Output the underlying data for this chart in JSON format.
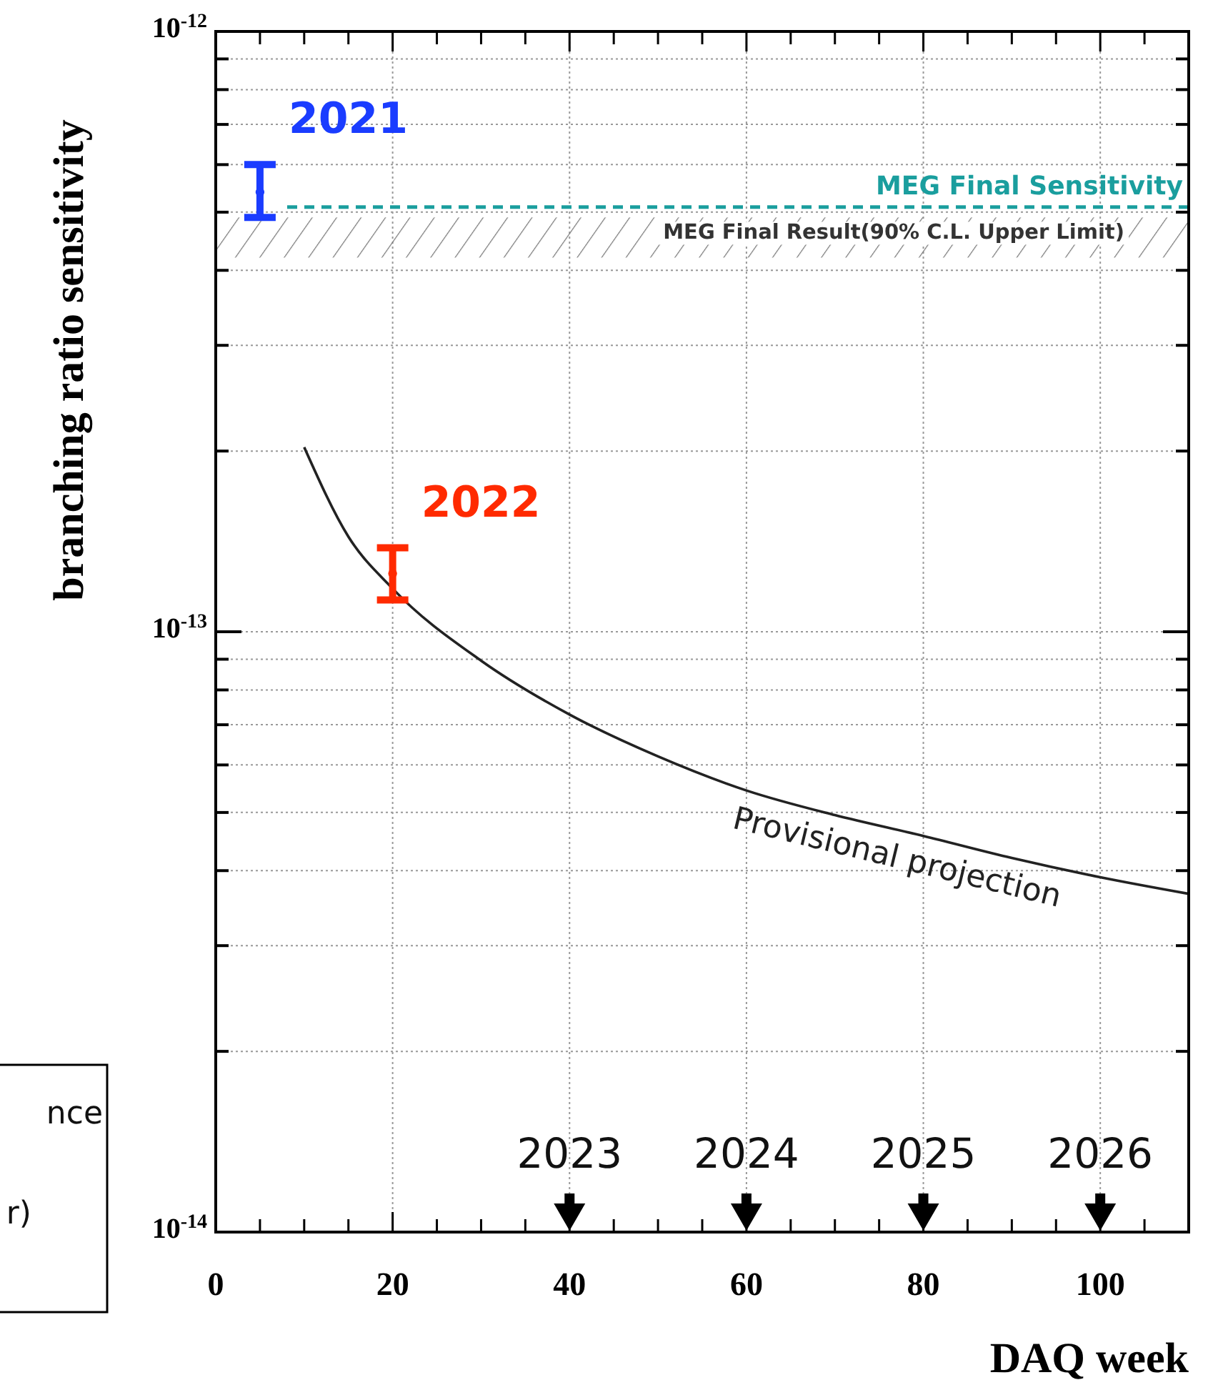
{
  "chart_data": {
    "type": "line",
    "xlabel": "DAQ week",
    "ylabel": "branching ratio sensitivity",
    "xlim": [
      0,
      110
    ],
    "xticks": [
      0,
      {
        "value": 5,
        "label": null
      },
      {
        "value": 10,
        "label": null
      },
      {
        "value": 15,
        "label": null
      },
      20,
      {
        "value": 25,
        "label": null
      },
      {
        "value": 30,
        "label": null
      },
      {
        "value": 35,
        "label": null
      },
      40,
      {
        "value": 45,
        "label": null
      },
      {
        "value": 50,
        "label": null
      },
      {
        "value": 55,
        "label": null
      },
      60,
      {
        "value": 65,
        "label": null
      },
      {
        "value": 70,
        "label": null
      },
      {
        "value": 75,
        "label": null
      },
      80,
      {
        "value": 85,
        "label": null
      },
      {
        "value": 90,
        "label": null
      },
      {
        "value": 95,
        "label": null
      },
      100,
      {
        "value": 105,
        "label": null
      }
    ],
    "ylim": [
      1e-14,
      1e-12
    ],
    "log": true,
    "yticks": [
      {
        "value": 1e-14,
        "label": "10$^{-14}$"
      },
      {
        "value": 2e-14,
        "label": null
      },
      {
        "value": 3e-14,
        "label": null
      },
      {
        "value": 4e-14,
        "label": null
      },
      {
        "value": 5e-14,
        "label": null
      },
      {
        "value": 6e-14,
        "label": null
      },
      {
        "value": 7e-14,
        "label": null
      },
      {
        "value": 8e-14,
        "label": null
      },
      {
        "value": 9e-14,
        "label": null
      },
      {
        "value": 1e-13,
        "label": "10$^{-13}$"
      },
      {
        "value": 2e-13,
        "label": null
      },
      {
        "value": 3e-13,
        "label": null
      },
      {
        "value": 4e-13,
        "label": null
      },
      {
        "value": 5e-13,
        "label": null
      },
      {
        "value": 6e-13,
        "label": null
      },
      {
        "value": 7e-13,
        "label": null
      },
      {
        "value": 8e-13,
        "label": null
      },
      {
        "value": 9e-13,
        "label": null
      },
      {
        "value": 1e-12,
        "label": "10$^{-12}$"
      }
    ],
    "grid": true,
    "series": [
      {
        "name": "Provisional projection",
        "color": "#222222",
        "line_style": "solid",
        "marker": "none",
        "x": [
          10,
          15,
          20,
          30,
          40,
          50,
          60,
          70,
          80,
          90,
          100,
          110
        ],
        "values": [
          2.03e-13,
          1.44e-13,
          1.18e-13,
          8.95e-14,
          7.28e-14,
          6.2e-14,
          5.44e-14,
          4.95e-14,
          4.57e-14,
          4.2e-14,
          3.9e-14,
          3.66e-14
        ]
      },
      {
        "name": "2021",
        "type": "scatter",
        "color": "#1a3cff",
        "marker": "circle",
        "x": [
          5
        ],
        "values": [
          5.4e-13
        ],
        "errors": [
          [
            4.9e-13,
            6e-13
          ]
        ]
      },
      {
        "name": "2022",
        "type": "scatter",
        "color": "#ff2a00",
        "marker": "circle",
        "x": [
          20
        ],
        "values": [
          1.25e-13
        ],
        "errors": [
          [
            1.13e-13,
            1.38e-13
          ]
        ]
      }
    ],
    "ref_lines": [
      {
        "axis": "y",
        "value": 5.1e-13,
        "label": "MEG Final Sensitivity",
        "color": "#1a9e9e",
        "line_style": "dashed"
      }
    ],
    "bands": [
      {
        "axis": "y",
        "from": 4.2e-13,
        "to": 4.9e-13,
        "label": "MEG Final Result(90% C.L. Upper Limit)",
        "color": "#777777"
      }
    ],
    "annotations": [
      "2023",
      "2024",
      "2025",
      "2026",
      "nce",
      "r)"
    ]
  }
}
